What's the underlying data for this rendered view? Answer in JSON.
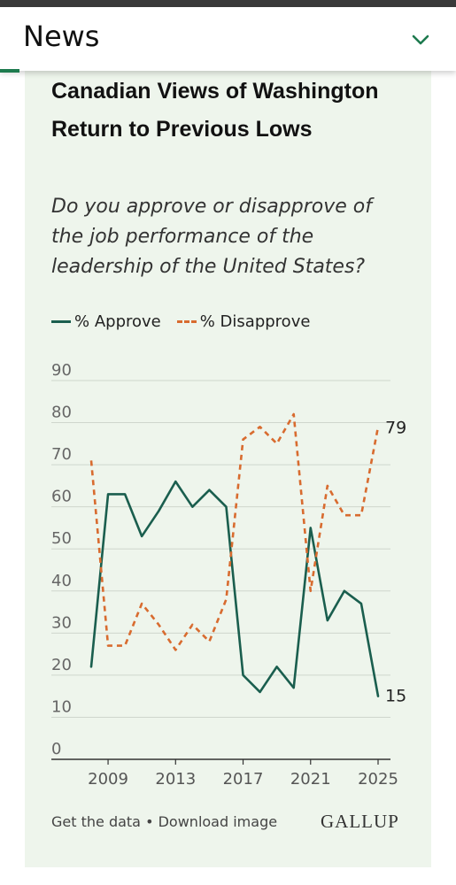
{
  "header": {
    "title": "News"
  },
  "card": {
    "title": "Canadian Views of Washington Return to Previous Lows",
    "question": "Do you approve or disapprove of the job performance of the leadership of the United States?",
    "footer_get_data": "Get the data",
    "footer_sep": "•",
    "footer_download": "Download image",
    "logo": "GALLUP"
  },
  "colors": {
    "approve": "#1a5e4e",
    "disapprove": "#d86b2f",
    "accent": "#1d7a4e",
    "card_bg": "#eef5ec"
  },
  "chart_data": {
    "type": "line",
    "title": "Canadian Views of Washington Return to Previous Lows",
    "subtitle": "Do you approve or disapprove of the job performance of the leadership of the United States?",
    "x": [
      2008,
      2009,
      2010,
      2011,
      2012,
      2013,
      2014,
      2015,
      2016,
      2017,
      2018,
      2019,
      2020,
      2021,
      2022,
      2023,
      2024,
      2025
    ],
    "x_ticks": [
      2009,
      2013,
      2017,
      2021,
      2025
    ],
    "y_ticks": [
      0,
      10,
      20,
      30,
      40,
      50,
      60,
      70,
      80,
      90
    ],
    "ylim": [
      0,
      90
    ],
    "grid": true,
    "legend_position": "top-left",
    "series": [
      {
        "name": "% Approve",
        "style": "solid",
        "color": "#1a5e4e",
        "values": [
          22,
          63,
          63,
          53,
          59,
          66,
          60,
          64,
          60,
          20,
          16,
          22,
          17,
          55,
          33,
          40,
          37,
          15
        ]
      },
      {
        "name": "% Disapprove",
        "style": "dashed",
        "color": "#d86b2f",
        "values": [
          71,
          27,
          27,
          37,
          32,
          26,
          32,
          28,
          38,
          76,
          79,
          75,
          82,
          40,
          65,
          58,
          58,
          79
        ]
      }
    ],
    "end_labels": {
      "approve": "15",
      "disapprove": "79"
    }
  }
}
